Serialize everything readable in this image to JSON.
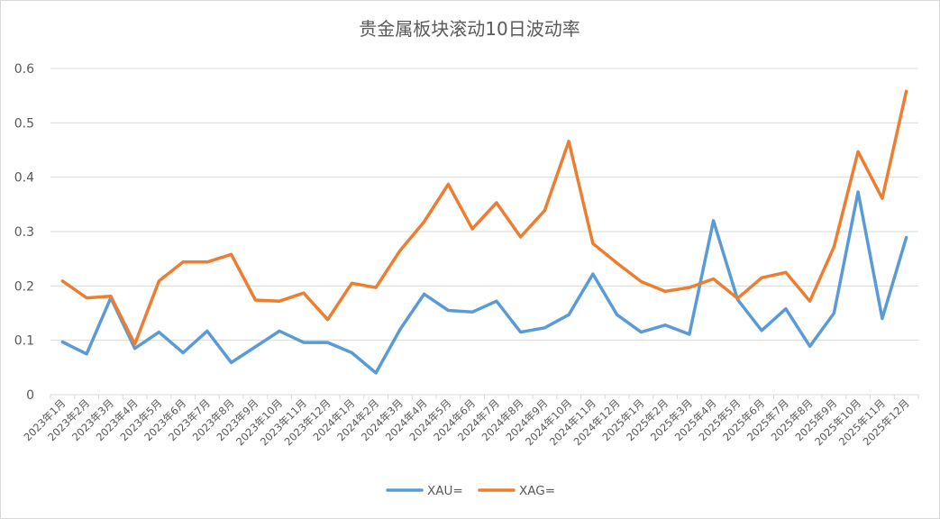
{
  "chart_data": {
    "type": "line",
    "title": "贵金属板块滚动10日波动率",
    "xlabel": "",
    "ylabel": "",
    "ylim": [
      0,
      0.6
    ],
    "yticks": [
      "0",
      "0.1",
      "0.2",
      "0.3",
      "0.4",
      "0.5",
      "0.6"
    ],
    "grid": true,
    "legend_position": "bottom",
    "categories": [
      "2023年1月",
      "2023年2月",
      "2023年3月",
      "2023年4月",
      "2023年5月",
      "2023年6月",
      "2023年7月",
      "2023年8月",
      "2023年9月",
      "2023年10月",
      "2023年11月",
      "2023年12月",
      "2024年1月",
      "2024年2月",
      "2024年3月",
      "2024年4月",
      "2024年5月",
      "2024年6月",
      "2024年7月",
      "2024年8月",
      "2024年9月",
      "2024年10月",
      "2024年11月",
      "2024年12月",
      "2025年1月",
      "2025年2月",
      "2025年3月",
      "2025年4月",
      "2025年5月",
      "2025年6月",
      "2025年7月",
      "2025年8月",
      "2025年9月",
      "2025年10月",
      "2025年11月",
      "2025年12月"
    ],
    "series": [
      {
        "name": "XAU=",
        "color": "#5b9bd5",
        "values": [
          0.097,
          0.075,
          0.178,
          0.085,
          0.115,
          0.077,
          0.117,
          0.059,
          0.088,
          0.117,
          0.096,
          0.096,
          0.077,
          0.04,
          0.12,
          0.185,
          0.155,
          0.152,
          0.172,
          0.115,
          0.123,
          0.147,
          0.222,
          0.147,
          0.115,
          0.128,
          0.111,
          0.32,
          0.175,
          0.118,
          0.158,
          0.089,
          0.15,
          0.373,
          0.14,
          0.289
        ]
      },
      {
        "name": "XAG=",
        "color": "#ed7d31",
        "values": [
          0.209,
          0.178,
          0.181,
          0.093,
          0.209,
          0.244,
          0.244,
          0.258,
          0.174,
          0.172,
          0.187,
          0.138,
          0.205,
          0.197,
          0.265,
          0.318,
          0.387,
          0.305,
          0.353,
          0.29,
          0.339,
          0.466,
          0.278,
          0.242,
          0.208,
          0.19,
          0.197,
          0.213,
          0.177,
          0.215,
          0.225,
          0.172,
          0.272,
          0.447,
          0.361,
          0.558
        ]
      }
    ]
  }
}
